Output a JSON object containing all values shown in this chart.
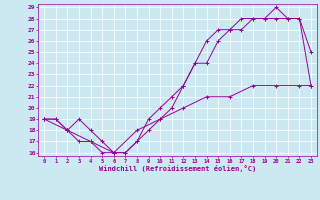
{
  "xlabel": "Windchill (Refroidissement éolien,°C)",
  "bg_color": "#cce8f0",
  "line_color": "#990099",
  "grid_color": "#ffffff",
  "xlim": [
    -0.5,
    23.5
  ],
  "ylim": [
    15.7,
    29.3
  ],
  "xticks": [
    0,
    1,
    2,
    3,
    4,
    5,
    6,
    7,
    8,
    9,
    10,
    11,
    12,
    13,
    14,
    15,
    16,
    17,
    18,
    19,
    20,
    21,
    22,
    23
  ],
  "yticks": [
    16,
    17,
    18,
    19,
    20,
    21,
    22,
    23,
    24,
    25,
    26,
    27,
    28,
    29
  ],
  "line1_x": [
    0,
    1,
    2,
    3,
    4,
    5,
    6,
    7,
    8,
    9,
    10,
    11,
    12,
    13,
    14,
    15,
    16,
    17,
    18,
    19,
    20,
    21,
    22,
    23
  ],
  "line1_y": [
    19,
    19,
    18,
    19,
    18,
    17,
    16,
    16,
    17,
    18,
    19,
    20,
    22,
    24,
    24,
    26,
    27,
    27,
    28,
    28,
    29,
    28,
    28,
    25
  ],
  "line2_x": [
    0,
    1,
    2,
    3,
    4,
    5,
    6,
    7,
    8,
    9,
    10,
    11,
    12,
    13,
    14,
    15,
    16,
    17,
    18,
    19,
    20,
    21,
    22,
    23
  ],
  "line2_y": [
    19,
    19,
    18,
    17,
    17,
    16,
    16,
    16,
    17,
    19,
    20,
    21,
    22,
    24,
    26,
    27,
    27,
    28,
    28,
    28,
    28,
    28,
    28,
    22
  ],
  "line3_x": [
    0,
    2,
    4,
    6,
    8,
    10,
    12,
    14,
    16,
    18,
    20,
    22,
    23
  ],
  "line3_y": [
    19,
    18,
    17,
    16,
    18,
    19,
    20,
    21,
    21,
    22,
    22,
    22,
    22
  ]
}
